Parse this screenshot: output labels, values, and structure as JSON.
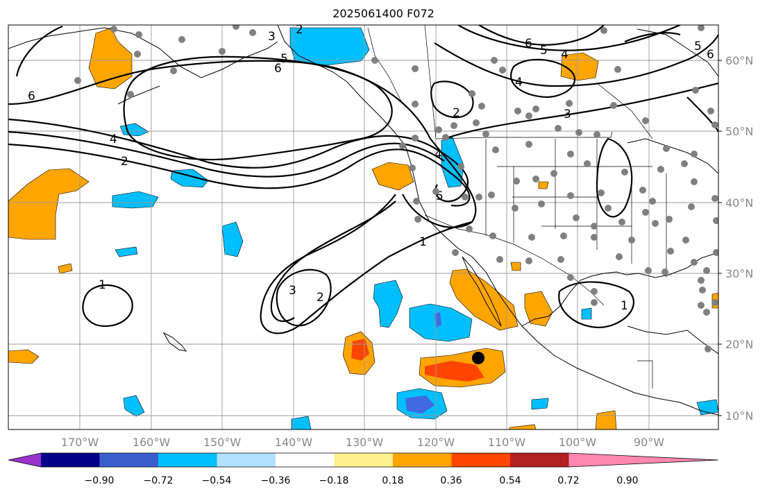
{
  "title": "2025061400 F072",
  "map": {
    "lat_labels": [
      "60°N",
      "50°N",
      "40°N",
      "30°N",
      "20°N",
      "10°N"
    ],
    "lon_labels": [
      "170°W",
      "160°W",
      "150°W",
      "140°W",
      "130°W",
      "120°W",
      "110°W",
      "100°W",
      "90°W"
    ],
    "contour_labels": [
      "6",
      "5",
      "4",
      "3",
      "2",
      "1"
    ],
    "grid": true
  },
  "colorbar": {
    "ticks": [
      "−0.90",
      "−0.72",
      "−0.54",
      "−0.36",
      "−0.18",
      "0.18",
      "0.36",
      "0.54",
      "0.72",
      "0.90"
    ],
    "colors": [
      "#9933cc",
      "#00008b",
      "#3a5fcd",
      "#00bfff",
      "#b0e2ff",
      "#ffffff",
      "#fff08c",
      "#ffa500",
      "#ff4500",
      "#b22222",
      "#ff88b0"
    ]
  },
  "colors": {
    "negative_strong": "#4169e1",
    "negative": "#00bfff",
    "positive": "#ffa500",
    "positive_strong": "#ff4500",
    "stations": "#808080",
    "marker": "#000000"
  }
}
